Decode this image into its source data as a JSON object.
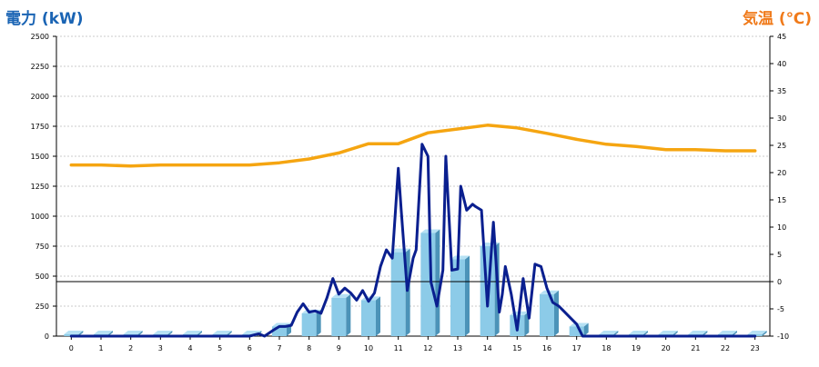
{
  "chart_data": {
    "type": "combo-bar-line",
    "left_axis": {
      "label": "電力 (kW)",
      "min": 0,
      "max": 2500,
      "ticks": [
        0,
        250,
        500,
        750,
        1000,
        1250,
        1500,
        1750,
        2000,
        2250,
        2500
      ]
    },
    "right_axis": {
      "label": "気温 (℃)",
      "min": -10,
      "max": 45,
      "ticks": [
        -10,
        -5,
        0,
        5,
        10,
        15,
        20,
        25,
        30,
        35,
        40,
        45
      ]
    },
    "x_axis": {
      "ticks": [
        "0",
        "1",
        "2",
        "3",
        "4",
        "5",
        "6",
        "7",
        "8",
        "9",
        "10",
        "11",
        "12",
        "13",
        "14",
        "15",
        "16",
        "17",
        "18",
        "19",
        "20",
        "21",
        "22",
        "23"
      ]
    },
    "grid": "horizontal dashed",
    "reference_line": {
      "axis": "right",
      "value": 0
    },
    "series": [
      {
        "type": "bar",
        "axis": "left",
        "color": "#8ccbe8",
        "x": [
          0,
          1,
          2,
          3,
          4,
          5,
          6,
          7,
          8,
          9,
          10,
          11,
          12,
          13,
          14,
          15,
          16,
          17,
          18,
          19,
          20,
          21,
          22,
          23
        ],
        "values": [
          15,
          15,
          15,
          15,
          15,
          15,
          15,
          80,
          190,
          320,
          300,
          700,
          860,
          640,
          750,
          175,
          350,
          80,
          15,
          15,
          15,
          15,
          15,
          15
        ]
      },
      {
        "type": "line",
        "axis": "left",
        "color": "#0a1f8f",
        "x": [
          0,
          6,
          6.3,
          6.5,
          6.8,
          7,
          7.2,
          7.4,
          7.6,
          7.8,
          8,
          8.2,
          8.4,
          8.6,
          8.8,
          9,
          9.2,
          9.4,
          9.6,
          9.8,
          10,
          10.2,
          10.4,
          10.6,
          10.8,
          11,
          11.1,
          11.3,
          11.5,
          11.6,
          11.8,
          12,
          12.1,
          12.3,
          12.5,
          12.6,
          12.8,
          13,
          13.1,
          13.3,
          13.5,
          13.6,
          13.8,
          14,
          14.2,
          14.4,
          14.5,
          14.6,
          14.8,
          15,
          15.2,
          15.4,
          15.6,
          15.8,
          16,
          16.2,
          16.4,
          16.6,
          16.8,
          17,
          17.2,
          17.5,
          23
        ],
        "values": [
          0,
          0,
          20,
          0,
          50,
          80,
          80,
          90,
          200,
          270,
          200,
          210,
          190,
          320,
          480,
          350,
          400,
          360,
          300,
          380,
          290,
          360,
          580,
          720,
          650,
          1400,
          1050,
          380,
          650,
          720,
          1600,
          1500,
          450,
          250,
          550,
          1500,
          550,
          560,
          1250,
          1050,
          1100,
          1080,
          1050,
          250,
          950,
          200,
          350,
          580,
          350,
          50,
          480,
          150,
          600,
          580,
          400,
          280,
          250,
          200,
          150,
          100,
          0,
          0,
          0
        ]
      },
      {
        "type": "line",
        "axis": "right",
        "color": "#f5a511",
        "x": [
          0,
          1,
          2,
          3,
          4,
          5,
          6,
          7,
          8,
          9,
          10,
          11,
          12,
          13,
          14,
          15,
          16,
          17,
          18,
          19,
          20,
          21,
          22,
          23
        ],
        "values": [
          21.4,
          21.4,
          21.2,
          21.4,
          21.4,
          21.4,
          21.4,
          21.8,
          22.5,
          23.6,
          25.3,
          25.3,
          27.3,
          28.0,
          28.7,
          28.2,
          27.2,
          26.1,
          25.2,
          24.8,
          24.2,
          24.2,
          24.0,
          24.0
        ]
      }
    ]
  }
}
